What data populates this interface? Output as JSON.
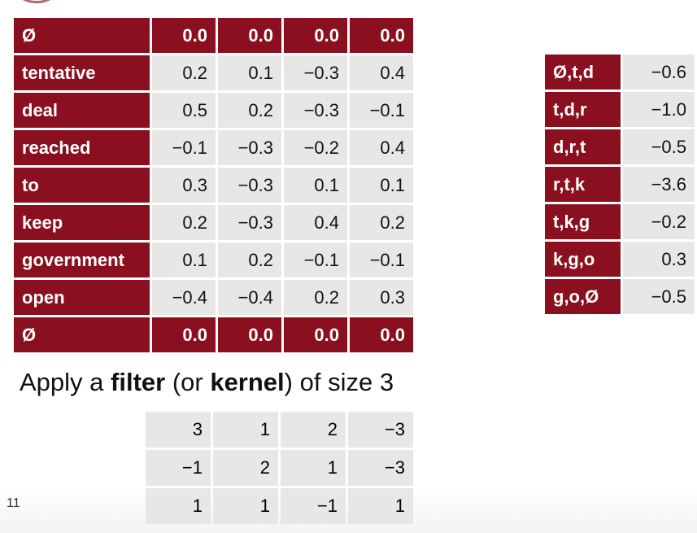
{
  "main_table": {
    "top_pad": {
      "label": "Ø",
      "values": [
        "0.0",
        "0.0",
        "0.0",
        "0.0"
      ]
    },
    "rows": [
      {
        "label": "tentative",
        "values": [
          "0.2",
          "0.1",
          "−0.3",
          "0.4"
        ]
      },
      {
        "label": "deal",
        "values": [
          "0.5",
          "0.2",
          "−0.3",
          "−0.1"
        ]
      },
      {
        "label": "reached",
        "values": [
          "−0.1",
          "−0.3",
          "−0.2",
          "0.4"
        ]
      },
      {
        "label": "to",
        "values": [
          "0.3",
          "−0.3",
          "0.1",
          "0.1"
        ]
      },
      {
        "label": "keep",
        "values": [
          "0.2",
          "−0.3",
          "0.4",
          "0.2"
        ]
      },
      {
        "label": "government",
        "values": [
          "0.1",
          "0.2",
          "−0.1",
          "−0.1"
        ]
      },
      {
        "label": "open",
        "values": [
          "−0.4",
          "−0.4",
          "0.2",
          "0.3"
        ]
      }
    ],
    "bottom_pad": {
      "label": "Ø",
      "values": [
        "0.0",
        "0.0",
        "0.0",
        "0.0"
      ]
    }
  },
  "right_table": {
    "rows": [
      {
        "label": "Ø,t,d",
        "value": "−0.6"
      },
      {
        "label": "t,d,r",
        "value": "−1.0"
      },
      {
        "label": "d,r,t",
        "value": "−0.5"
      },
      {
        "label": "r,t,k",
        "value": "−3.6"
      },
      {
        "label": "t,k,g",
        "value": "−0.2"
      },
      {
        "label": "k,g,o",
        "value": "0.3"
      },
      {
        "label": "g,o,Ø",
        "value": "−0.5"
      }
    ]
  },
  "caption": {
    "prefix": "Apply a ",
    "bold1": "filter",
    "middle": " (or ",
    "bold2": "kernel",
    "suffix": ") of size 3"
  },
  "filter_table": {
    "rows": [
      [
        "3",
        "1",
        "2",
        "−3"
      ],
      [
        "−1",
        "2",
        "1",
        "−3"
      ],
      [
        "1",
        "1",
        "−1",
        "1"
      ]
    ]
  },
  "slide_number": "11",
  "colors": {
    "accent": "#8a1020",
    "cell_bg": "#e9e6e6"
  }
}
